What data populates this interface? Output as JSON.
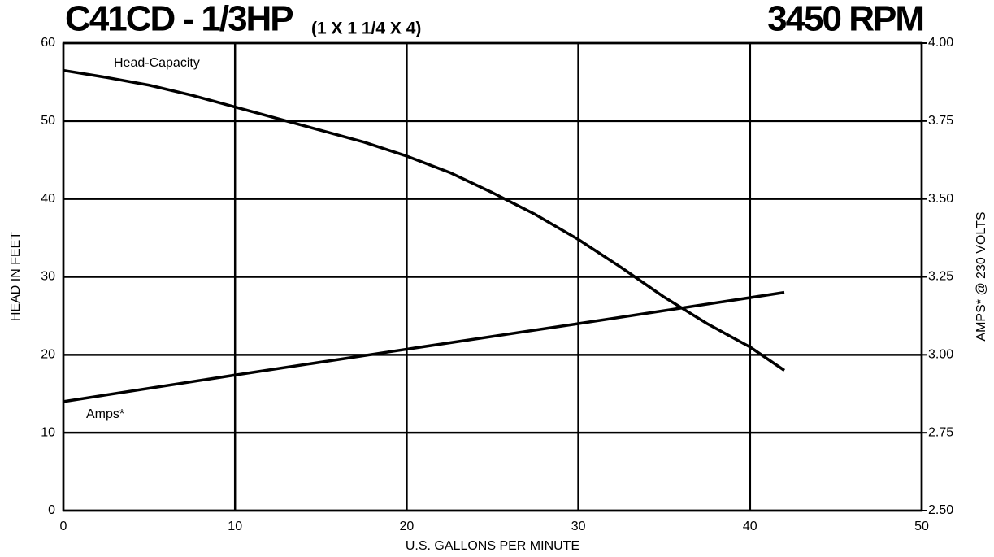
{
  "chart_data": {
    "type": "line",
    "title": "C41CD - 1/3HP",
    "subtitle": "(1 X 1 1/4 X 4)",
    "speed": "3450 RPM",
    "xlabel": "U.S. GALLONS PER MINUTE",
    "ylabel": "HEAD IN FEET",
    "y2label": "AMPS* @ 230 VOLTS",
    "xlim": [
      0,
      50
    ],
    "xticks": [
      0,
      10,
      20,
      30,
      40,
      50
    ],
    "ylim": [
      0,
      60
    ],
    "yticks": [
      0,
      10,
      20,
      30,
      40,
      50,
      60
    ],
    "y2lim": [
      2.5,
      4.0
    ],
    "y2ticks": [
      {
        "value": 2.5,
        "label": "2.50"
      },
      2.75,
      {
        "value": 3.0,
        "label": "3.00"
      },
      3.25,
      {
        "value": 3.5,
        "label": "3.50"
      },
      3.75,
      {
        "value": 4.0,
        "label": "4.00"
      }
    ],
    "grid": true,
    "series": [
      {
        "name": "Head-Capacity",
        "color": "#000000",
        "x": [
          0,
          2.5,
          5,
          7.5,
          10,
          13,
          15,
          17.5,
          20,
          22.5,
          25,
          27.5,
          30,
          32.5,
          35,
          37.5,
          40,
          42
        ],
        "values": [
          56.5,
          55.6,
          54.6,
          53.3,
          51.8,
          50,
          48.8,
          47.3,
          45.5,
          43.4,
          40.8,
          38,
          34.8,
          31.2,
          27.4,
          24,
          21,
          18
        ]
      },
      {
        "name": "Amps*",
        "color": "#000000",
        "axis": "y2",
        "x": [
          0,
          10,
          20,
          30,
          42
        ],
        "values": [
          2.85,
          2.935,
          3.018,
          3.1,
          3.2
        ]
      }
    ]
  }
}
